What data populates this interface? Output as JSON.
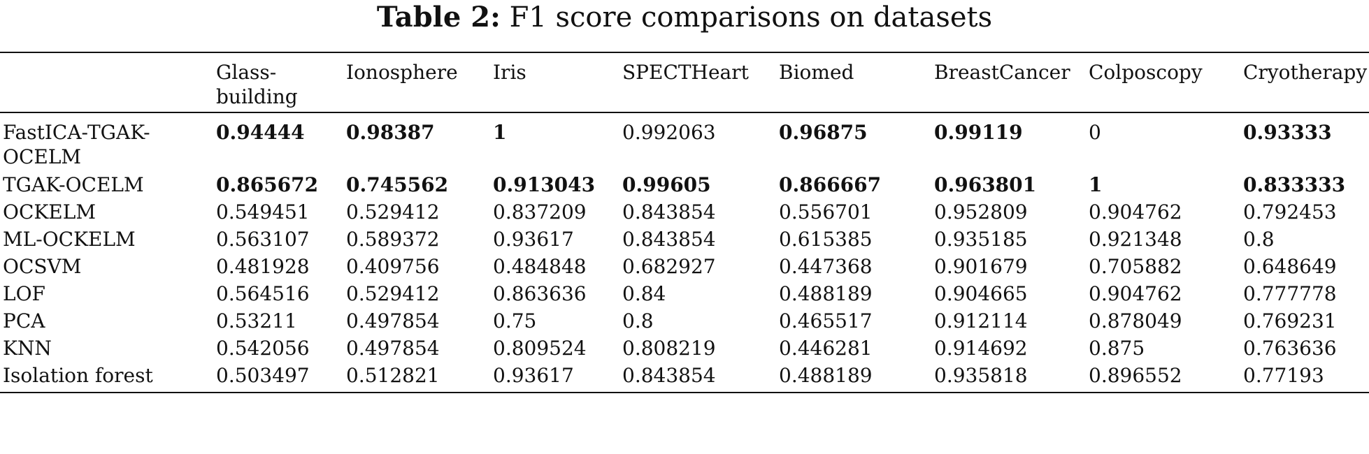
{
  "caption": {
    "label": "Table 2:",
    "text": "F1 score comparisons on datasets"
  },
  "table": {
    "columns": [
      "",
      "Glass-building",
      "Ionosphere",
      "Iris",
      "SPECTHeart",
      "Biomed",
      "BreastCancer",
      "Colposcopy",
      "Cryotherapy"
    ],
    "column_display": [
      "",
      "Glass-\nbuilding",
      "Ionosphere",
      "Iris",
      "SPECTHeart",
      "Biomed",
      "BreastCancer",
      "Colposcopy",
      "Cryotherapy"
    ],
    "rows": [
      {
        "method": "FastICA-TGAK-OCELM",
        "method_display": "FastICA-TGAK-\nOCELM",
        "values": [
          "0.94444",
          "0.98387",
          "1",
          "0.992063",
          "0.96875",
          "0.99119",
          "0",
          "0.93333"
        ],
        "bold": [
          true,
          true,
          true,
          false,
          true,
          true,
          false,
          true
        ]
      },
      {
        "method": "TGAK-OCELM",
        "method_display": "TGAK-OCELM",
        "values": [
          "0.865672",
          "0.745562",
          "0.913043",
          "0.99605",
          "0.866667",
          "0.963801",
          "1",
          "0.833333"
        ],
        "bold": [
          true,
          true,
          true,
          true,
          true,
          true,
          true,
          true
        ]
      },
      {
        "method": "OCKELM",
        "method_display": "OCKELM",
        "values": [
          "0.549451",
          "0.529412",
          "0.837209",
          "0.843854",
          "0.556701",
          "0.952809",
          "0.904762",
          "0.792453"
        ],
        "bold": [
          false,
          false,
          false,
          false,
          false,
          false,
          false,
          false
        ]
      },
      {
        "method": "ML-OCKELM",
        "method_display": "ML-OCKELM",
        "values": [
          "0.563107",
          "0.589372",
          "0.93617",
          "0.843854",
          "0.615385",
          "0.935185",
          "0.921348",
          "0.8"
        ],
        "bold": [
          false,
          false,
          false,
          false,
          false,
          false,
          false,
          false
        ]
      },
      {
        "method": "OCSVM",
        "method_display": "OCSVM",
        "values": [
          "0.481928",
          "0.409756",
          "0.484848",
          "0.682927",
          "0.447368",
          "0.901679",
          "0.705882",
          "0.648649"
        ],
        "bold": [
          false,
          false,
          false,
          false,
          false,
          false,
          false,
          false
        ]
      },
      {
        "method": "LOF",
        "method_display": "LOF",
        "values": [
          "0.564516",
          "0.529412",
          "0.863636",
          "0.84",
          "0.488189",
          "0.904665",
          "0.904762",
          "0.777778"
        ],
        "bold": [
          false,
          false,
          false,
          false,
          false,
          false,
          false,
          false
        ]
      },
      {
        "method": "PCA",
        "method_display": "PCA",
        "values": [
          "0.53211",
          "0.497854",
          "0.75",
          "0.8",
          "0.465517",
          "0.912114",
          "0.878049",
          "0.769231"
        ],
        "bold": [
          false,
          false,
          false,
          false,
          false,
          false,
          false,
          false
        ]
      },
      {
        "method": "KNN",
        "method_display": "KNN",
        "values": [
          "0.542056",
          "0.497854",
          "0.809524",
          "0.808219",
          "0.446281",
          "0.914692",
          "0.875",
          "0.763636"
        ],
        "bold": [
          false,
          false,
          false,
          false,
          false,
          false,
          false,
          false
        ]
      },
      {
        "method": "Isolation forest",
        "method_display": "Isolation forest",
        "values": [
          "0.503497",
          "0.512821",
          "0.93617",
          "0.843854",
          "0.488189",
          "0.935818",
          "0.896552",
          "0.77193"
        ],
        "bold": [
          false,
          false,
          false,
          false,
          false,
          false,
          false,
          false
        ]
      }
    ]
  }
}
